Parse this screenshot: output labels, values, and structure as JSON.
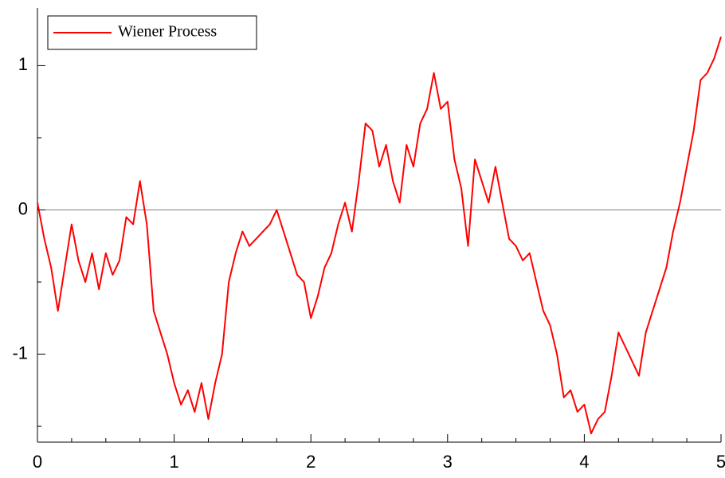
{
  "chart_data": {
    "type": "line",
    "legend_position": "upper left",
    "xlim": [
      0,
      5
    ],
    "ylim": [
      -1.61,
      1.4
    ],
    "xticks": [
      0,
      1,
      2,
      3,
      4,
      5
    ],
    "xminor_ticks": [
      0.25,
      0.5,
      0.75,
      1.25,
      1.5,
      1.75,
      2.25,
      2.5,
      2.75,
      3.25,
      3.5,
      3.75,
      4.25,
      4.5,
      4.75
    ],
    "yticks": [
      -1,
      0,
      1
    ],
    "yminor_ticks": [
      -1.5,
      -0.5,
      0.5
    ],
    "hline": 0,
    "x": [
      0,
      0.05,
      0.1,
      0.15,
      0.2,
      0.25,
      0.3,
      0.35,
      0.4,
      0.45,
      0.5,
      0.55,
      0.6,
      0.65,
      0.7,
      0.75,
      0.8,
      0.85,
      0.9,
      0.95,
      1,
      1.05,
      1.1,
      1.15,
      1.2,
      1.25,
      1.3,
      1.35,
      1.4,
      1.45,
      1.5,
      1.55,
      1.6,
      1.65,
      1.7,
      1.75,
      1.8,
      1.85,
      1.9,
      1.95,
      2,
      2.05,
      2.1,
      2.15,
      2.2,
      2.25,
      2.3,
      2.35,
      2.4,
      2.45,
      2.5,
      2.55,
      2.6,
      2.65,
      2.7,
      2.75,
      2.8,
      2.85,
      2.9,
      2.95,
      3,
      3.05,
      3.1,
      3.15,
      3.2,
      3.25,
      3.3,
      3.35,
      3.4,
      3.45,
      3.5,
      3.55,
      3.6,
      3.65,
      3.7,
      3.75,
      3.8,
      3.85,
      3.9,
      3.95,
      4,
      4.05,
      4.1,
      4.15,
      4.2,
      4.25,
      4.3,
      4.35,
      4.4,
      4.45,
      4.5,
      4.55,
      4.6,
      4.65,
      4.7,
      4.75,
      4.8,
      4.85,
      4.9,
      4.95,
      5
    ],
    "series": [
      {
        "name": "Wiener Process",
        "color": "#ff0000",
        "values": [
          0.05,
          -0.2,
          -0.4,
          -0.7,
          -0.4,
          -0.1,
          -0.35,
          -0.5,
          -0.3,
          -0.55,
          -0.3,
          -0.45,
          -0.35,
          -0.05,
          -0.1,
          0.2,
          -0.1,
          -0.7,
          -0.85,
          -1.0,
          -1.2,
          -1.35,
          -1.25,
          -1.4,
          -1.2,
          -1.45,
          -1.2,
          -1.0,
          -0.5,
          -0.3,
          -0.15,
          -0.25,
          -0.2,
          -0.15,
          -0.1,
          0.0,
          -0.15,
          -0.3,
          -0.45,
          -0.5,
          -0.75,
          -0.6,
          -0.4,
          -0.3,
          -0.1,
          0.05,
          -0.15,
          0.2,
          0.6,
          0.55,
          0.3,
          0.45,
          0.2,
          0.05,
          0.45,
          0.3,
          0.6,
          0.7,
          0.95,
          0.7,
          0.75,
          0.35,
          0.15,
          -0.25,
          0.35,
          0.2,
          0.05,
          0.3,
          0.05,
          -0.2,
          -0.25,
          -0.35,
          -0.3,
          -0.5,
          -0.7,
          -0.8,
          -1.0,
          -1.3,
          -1.25,
          -1.4,
          -1.35,
          -1.55,
          -1.45,
          -1.4,
          -1.15,
          -0.85,
          -0.95,
          -1.05,
          -1.15,
          -0.85,
          -0.7,
          -0.55,
          -0.4,
          -0.15,
          0.05,
          0.3,
          0.55,
          0.9,
          0.95,
          1.05,
          1.2
        ]
      }
    ]
  }
}
